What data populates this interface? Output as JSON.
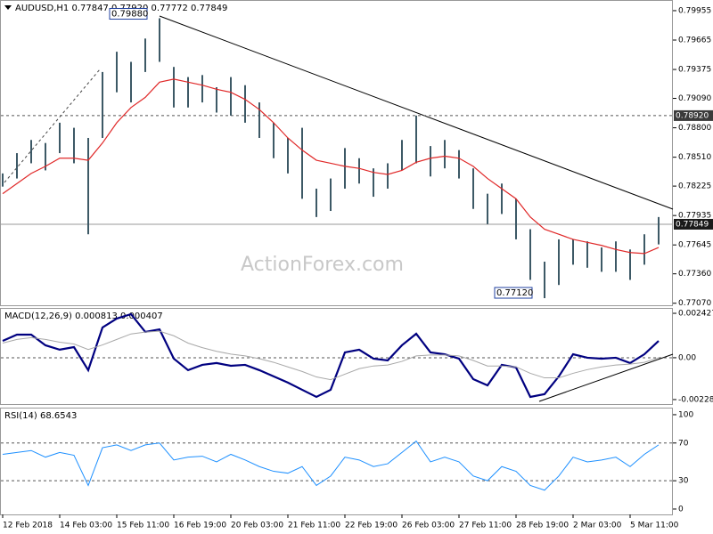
{
  "chart_data": [
    {
      "type": "ohlc",
      "title": "AUDUSD,H1  0.77847 0.77920 0.77772 0.77849",
      "watermark": "ActionForex.com",
      "color": "#3d5966",
      "high": [
        0.7835,
        0.7855,
        0.7868,
        0.7865,
        0.7885,
        0.788,
        0.787,
        0.7935,
        0.7955,
        0.7945,
        0.7968,
        0.7988,
        0.794,
        0.793,
        0.7932,
        0.792,
        0.793,
        0.7922,
        0.7905,
        0.7885,
        0.787,
        0.788,
        0.782,
        0.783,
        0.786,
        0.785,
        0.784,
        0.7845,
        0.7868,
        0.7892,
        0.7862,
        0.7868,
        0.7858,
        0.784,
        0.7815,
        0.7825,
        0.781,
        0.778,
        0.7748,
        0.777,
        0.777,
        0.7768,
        0.7762,
        0.7768,
        0.776,
        0.7775,
        0.7792
      ],
      "low": [
        0.7822,
        0.783,
        0.7845,
        0.7838,
        0.7855,
        0.7845,
        0.7775,
        0.787,
        0.7915,
        0.7905,
        0.7935,
        0.7945,
        0.79,
        0.79,
        0.7905,
        0.7895,
        0.7892,
        0.7885,
        0.787,
        0.785,
        0.7835,
        0.781,
        0.7792,
        0.7798,
        0.782,
        0.7825,
        0.7812,
        0.782,
        0.7838,
        0.7845,
        0.7832,
        0.784,
        0.783,
        0.78,
        0.7785,
        0.7795,
        0.777,
        0.773,
        0.7712,
        0.7725,
        0.7745,
        0.7742,
        0.7738,
        0.7738,
        0.773,
        0.7745,
        0.7765
      ],
      "ma": {
        "color": "#e02828",
        "values": [
          0.7815,
          0.7825,
          0.7835,
          0.7842,
          0.785,
          0.785,
          0.7848,
          0.7865,
          0.7885,
          0.79,
          0.791,
          0.7925,
          0.7928,
          0.7925,
          0.7922,
          0.7918,
          0.7915,
          0.7908,
          0.7898,
          0.7885,
          0.787,
          0.7858,
          0.7848,
          0.7845,
          0.7842,
          0.784,
          0.7836,
          0.7834,
          0.7838,
          0.7846,
          0.785,
          0.7852,
          0.785,
          0.7842,
          0.783,
          0.782,
          0.781,
          0.7792,
          0.778,
          0.7775,
          0.777,
          0.7767,
          0.7764,
          0.776,
          0.7757,
          0.7756,
          0.7762
        ]
      },
      "ylim": [
        0.7705,
        0.8006
      ],
      "yticks": [
        0.79955,
        0.79665,
        0.79375,
        {
          "value": 0.7909,
          "label": "0.79090"
        },
        {
          "value": 0.788,
          "label": "0.78800"
        },
        {
          "value": 0.7851,
          "label": "0.78510"
        },
        0.78225,
        0.77935,
        0.77645,
        {
          "value": 0.7736,
          "label": "0.77360"
        },
        {
          "value": 0.7707,
          "label": "0.77070"
        }
      ],
      "levels": [
        {
          "value": 0.7892,
          "label": "0.78920"
        }
      ],
      "last_price": 0.77849,
      "annotations": [
        {
          "value": 0.7988,
          "label": "0.79880"
        },
        {
          "value": 0.7712,
          "label": "0.77120"
        }
      ]
    },
    {
      "type": "line",
      "title": "MACD(12,26,9) 0.000813 0.000407",
      "series": [
        {
          "color": "#000080",
          "values": [
            0.00092,
            0.00126,
            0.00126,
            0.00068,
            0.00044,
            0.00058,
            -0.00068,
            0.00165,
            0.00214,
            0.00238,
            0.00141,
            0.00155,
            -5e-05,
            -0.00068,
            -0.00039,
            -0.00029,
            -0.00044,
            -0.00039,
            -0.00068,
            -0.00102,
            -0.00136,
            -0.00175,
            -0.00214,
            -0.00175,
            0.00029,
            0.00044,
            -5e-05,
            -0.00015,
            0.00068,
            0.00131,
            0.00029,
            0.00019,
            -5e-05,
            -0.00117,
            -0.00151,
            -0.00039,
            -0.00053,
            -0.00214,
            -0.00199,
            -0.00102,
            0.00019,
            0,
            -5e-05,
            0,
            -0.00029,
            0.00019,
            0.00092
          ]
        },
        {
          "color": "#a8a8a8",
          "values": [
            0.0008,
            0.001,
            0.0011,
            0.001,
            0.00085,
            0.00075,
            0.00045,
            0.0007,
            0.001,
            0.0013,
            0.0014,
            0.00145,
            0.0012,
            0.0008,
            0.00055,
            0.00035,
            0.0002,
            0.0001,
            -5e-05,
            -0.00025,
            -0.0005,
            -0.00075,
            -0.00105,
            -0.0012,
            -0.0009,
            -0.0006,
            -0.00045,
            -0.0004,
            -0.0002,
            0.0001,
            0.00015,
            0.00015,
            0.0001,
            -0.00015,
            -0.00045,
            -0.00045,
            -0.0005,
            -0.00085,
            -0.0011,
            -0.0011,
            -0.00085,
            -0.00065,
            -0.0005,
            -0.0004,
            -0.00035,
            -0.00025,
            0
          ]
        }
      ],
      "ylim": [
        -0.00258,
        0.00272
      ],
      "yticks": [
        0.002427,
        {
          "value": 0,
          "label": "0.00"
        },
        -0.002286
      ],
      "levels": [
        0
      ]
    },
    {
      "type": "line",
      "title": "RSI(14) 68.6543",
      "series": [
        {
          "color": "#1e90ff",
          "values": [
            58,
            60,
            62,
            55,
            60,
            57,
            25,
            65,
            68,
            62,
            68,
            70,
            52,
            55,
            56,
            50,
            58,
            52,
            45,
            40,
            38,
            45,
            25,
            35,
            55,
            52,
            45,
            48,
            60,
            72,
            50,
            55,
            50,
            35,
            30,
            45,
            40,
            25,
            20,
            35,
            55,
            50,
            52,
            55,
            45,
            58,
            68
          ]
        }
      ],
      "ylim": [
        -5.7,
        107.5
      ],
      "yticks": [
        100,
        70,
        30,
        0
      ],
      "levels": [
        70,
        30
      ],
      "categories": [
        "12 Feb 2018",
        null,
        null,
        null,
        "14 Feb 03:00",
        null,
        null,
        null,
        "15 Feb 11:00",
        null,
        null,
        null,
        "16 Feb 19:00",
        null,
        null,
        null,
        "20 Feb 03:00",
        null,
        null,
        null,
        "21 Feb 11:00",
        null,
        null,
        null,
        "22 Feb 19:00",
        null,
        null,
        null,
        "26 Feb 03:00",
        null,
        null,
        null,
        "27 Feb 11:00",
        null,
        null,
        null,
        "28 Feb 19:00",
        null,
        null,
        null,
        "2 Mar 03:00",
        null,
        null,
        null,
        "5 Mar 11:00",
        null,
        null
      ]
    }
  ]
}
